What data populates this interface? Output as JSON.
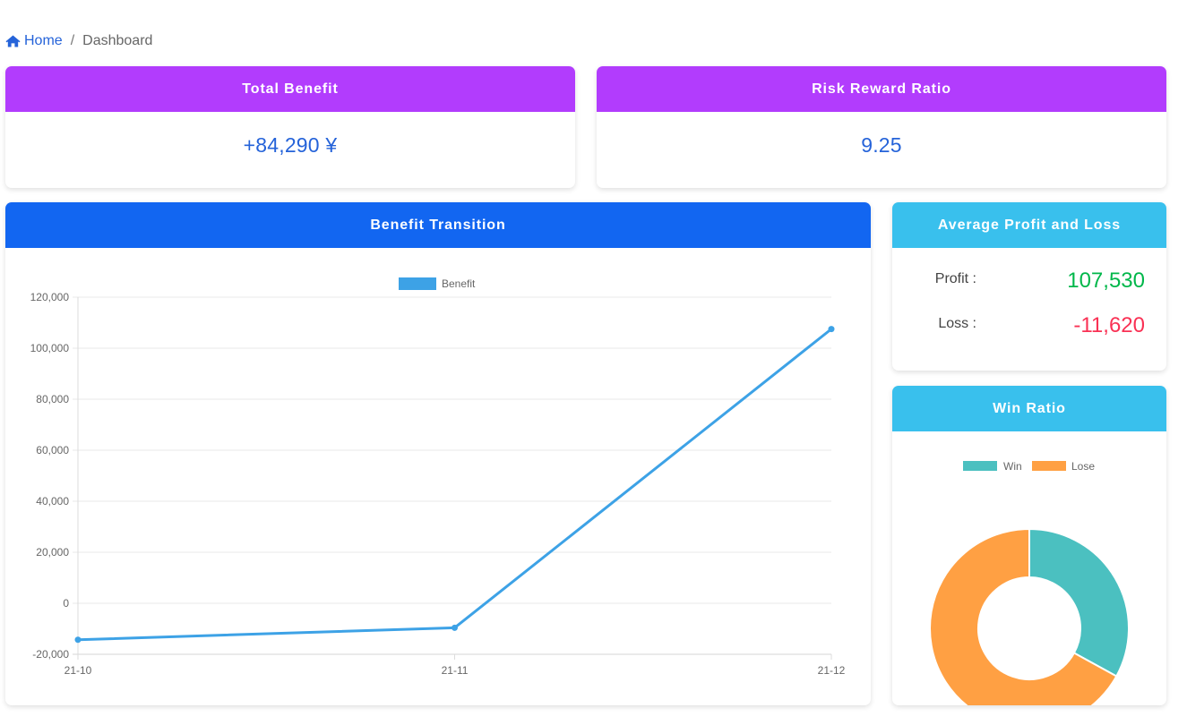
{
  "breadcrumb": {
    "home": "Home",
    "separator": "/",
    "current": "Dashboard"
  },
  "total_benefit": {
    "title": "Total Benefit",
    "value": "+84,290 ¥"
  },
  "risk_reward": {
    "title": "Risk Reward Ratio",
    "value": "9.25"
  },
  "avg_pl": {
    "title": "Average Profit and Loss",
    "profit_label": "Profit :",
    "profit_value": "107,530",
    "loss_label": "Loss :",
    "loss_value": "-11,620"
  },
  "colors": {
    "purple": "#b23cfd",
    "blue": "#1266f1",
    "cyan": "#39c0ed",
    "profit": "#00b74a",
    "loss": "#f93154",
    "line": "#3da2e6",
    "win": "#4bc0c0",
    "lose": "#ffa043"
  },
  "chart_data": [
    {
      "type": "line",
      "title": "Benefit Transition",
      "legend": [
        "Benefit"
      ],
      "legend_position": "top",
      "categories": [
        "21-10",
        "21-11",
        "21-12"
      ],
      "series": [
        {
          "name": "Benefit",
          "values": [
            -14300,
            -9600,
            107500
          ]
        }
      ],
      "ylim": [
        -20000,
        120000
      ],
      "yticks": [
        120000,
        100000,
        80000,
        60000,
        40000,
        20000,
        0,
        -20000
      ],
      "ytick_labels": [
        "120,000",
        "100,000",
        "80,000",
        "60,000",
        "40,000",
        "20,000",
        "0",
        "-20,000"
      ],
      "grid": true
    },
    {
      "type": "pie",
      "title": "Win Ratio",
      "legend": [
        "Win",
        "Lose"
      ],
      "legend_position": "top",
      "categories": [
        "Win",
        "Lose"
      ],
      "values": [
        33,
        67
      ]
    }
  ]
}
